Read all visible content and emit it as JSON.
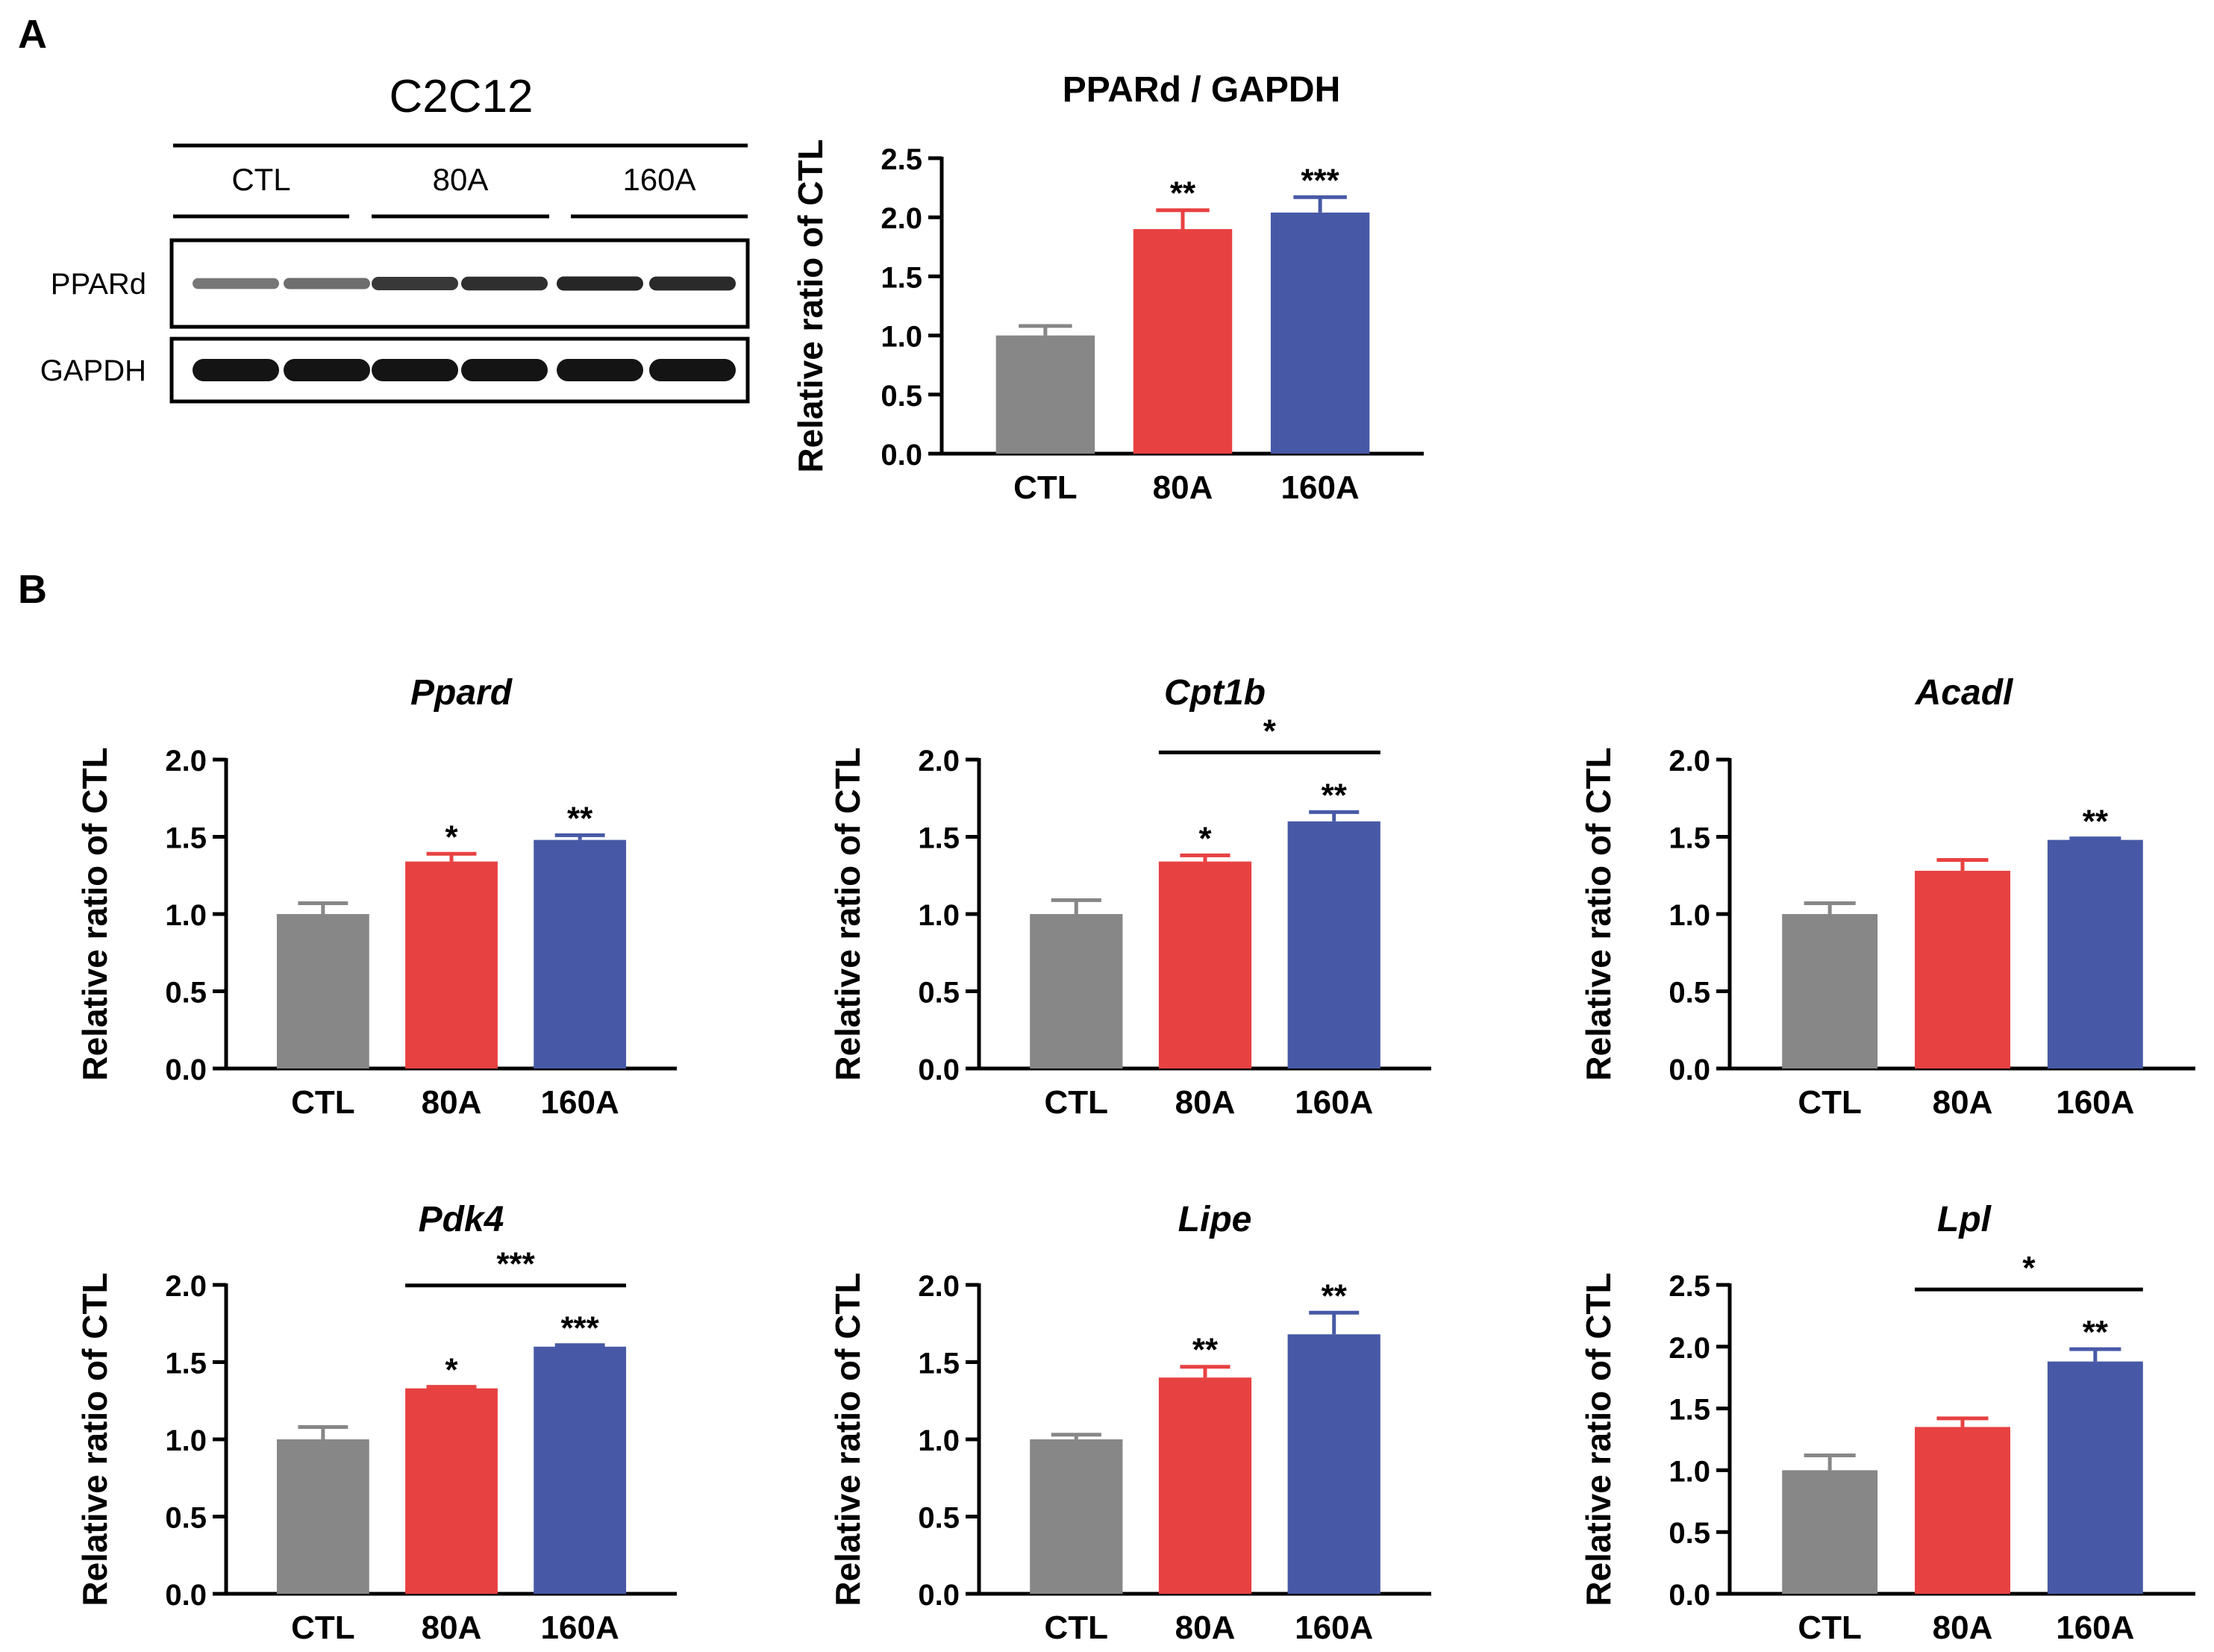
{
  "panel_labels": {
    "a": "A",
    "b": "B"
  },
  "colors": {
    "CTL": "#878787",
    "80A": "#e84141",
    "160A": "#4759a6",
    "axis": "#000000"
  },
  "blot": {
    "cell_line": "C2C12",
    "groups": [
      "CTL",
      "80A",
      "160A"
    ],
    "rows": [
      {
        "label": "PPARd",
        "intensities": [
          0.45,
          0.5,
          0.8,
          0.85,
          0.9,
          0.88
        ]
      },
      {
        "label": "GAPDH",
        "intensities": [
          1.0,
          1.0,
          1.0,
          1.0,
          1.0,
          1.0
        ]
      }
    ]
  },
  "chart_data": [
    {
      "id": "pparD-gapdh",
      "type": "bar",
      "title": "PPARd / GAPDH",
      "title_italic": false,
      "categories": [
        "CTL",
        "80A",
        "160A"
      ],
      "ylabel": "Relative ratio of CTL",
      "ylim": [
        0,
        2.5
      ],
      "yticks": [
        "0.0",
        "0.5",
        "1.0",
        "1.5",
        "2.0",
        "2.5"
      ],
      "values": [
        1.0,
        1.9,
        2.04
      ],
      "errors": [
        0.08,
        0.16,
        0.13
      ],
      "significance": [
        "",
        "**",
        "***"
      ],
      "bracket": null
    },
    {
      "id": "ppard",
      "type": "bar",
      "title": "Ppard",
      "title_italic": true,
      "categories": [
        "CTL",
        "80A",
        "160A"
      ],
      "ylabel": "Relative ratio of CTL",
      "ylim": [
        0,
        2.0
      ],
      "yticks": [
        "0.0",
        "0.5",
        "1.0",
        "1.5",
        "2.0"
      ],
      "values": [
        1.0,
        1.34,
        1.48
      ],
      "errors": [
        0.07,
        0.05,
        0.03
      ],
      "significance": [
        "",
        "*",
        "**"
      ],
      "bracket": null
    },
    {
      "id": "cpt1b",
      "type": "bar",
      "title": "Cpt1b",
      "title_italic": true,
      "categories": [
        "CTL",
        "80A",
        "160A"
      ],
      "ylabel": "Relative ratio of CTL",
      "ylim": [
        0,
        2.0
      ],
      "yticks": [
        "0.0",
        "0.5",
        "1.0",
        "1.5",
        "2.0"
      ],
      "values": [
        1.0,
        1.34,
        1.6
      ],
      "errors": [
        0.09,
        0.04,
        0.06
      ],
      "significance": [
        "",
        "*",
        "**"
      ],
      "bracket": {
        "from": 1,
        "to": 2,
        "label": "*"
      }
    },
    {
      "id": "acadl",
      "type": "bar",
      "title": "Acadl",
      "title_italic": true,
      "categories": [
        "CTL",
        "80A",
        "160A"
      ],
      "ylabel": "Relative ratio of CTL",
      "ylim": [
        0,
        2.0
      ],
      "yticks": [
        "0.0",
        "0.5",
        "1.0",
        "1.5",
        "2.0"
      ],
      "values": [
        1.0,
        1.28,
        1.48
      ],
      "errors": [
        0.07,
        0.07,
        0.01
      ],
      "significance": [
        "",
        "",
        "**"
      ],
      "bracket": null
    },
    {
      "id": "pdk4",
      "type": "bar",
      "title": "Pdk4",
      "title_italic": true,
      "categories": [
        "CTL",
        "80A",
        "160A"
      ],
      "ylabel": "Relative ratio of CTL",
      "ylim": [
        0,
        2.0
      ],
      "yticks": [
        "0.0",
        "0.5",
        "1.0",
        "1.5",
        "2.0"
      ],
      "values": [
        1.0,
        1.33,
        1.6
      ],
      "errors": [
        0.08,
        0.01,
        0.01
      ],
      "significance": [
        "",
        "*",
        "***"
      ],
      "bracket": {
        "from": 1,
        "to": 2,
        "label": "***"
      }
    },
    {
      "id": "lipe",
      "type": "bar",
      "title": "Lipe",
      "title_italic": true,
      "categories": [
        "CTL",
        "80A",
        "160A"
      ],
      "ylabel": "Relative ratio of CTL",
      "ylim": [
        0,
        2.0
      ],
      "yticks": [
        "0.0",
        "0.5",
        "1.0",
        "1.5",
        "2.0"
      ],
      "values": [
        1.0,
        1.4,
        1.68
      ],
      "errors": [
        0.03,
        0.07,
        0.14
      ],
      "significance": [
        "",
        "**",
        "**"
      ],
      "bracket": null
    },
    {
      "id": "lpl",
      "type": "bar",
      "title": "Lpl",
      "title_italic": true,
      "categories": [
        "CTL",
        "80A",
        "160A"
      ],
      "ylabel": "Relative ratio of CTL",
      "ylim": [
        0,
        2.5
      ],
      "yticks": [
        "0.0",
        "0.5",
        "1.0",
        "1.5",
        "2.0",
        "2.5"
      ],
      "values": [
        1.0,
        1.35,
        1.88
      ],
      "errors": [
        0.12,
        0.07,
        0.1
      ],
      "significance": [
        "",
        "",
        "**"
      ],
      "bracket": {
        "from": 1,
        "to": 2,
        "label": "*"
      }
    }
  ]
}
